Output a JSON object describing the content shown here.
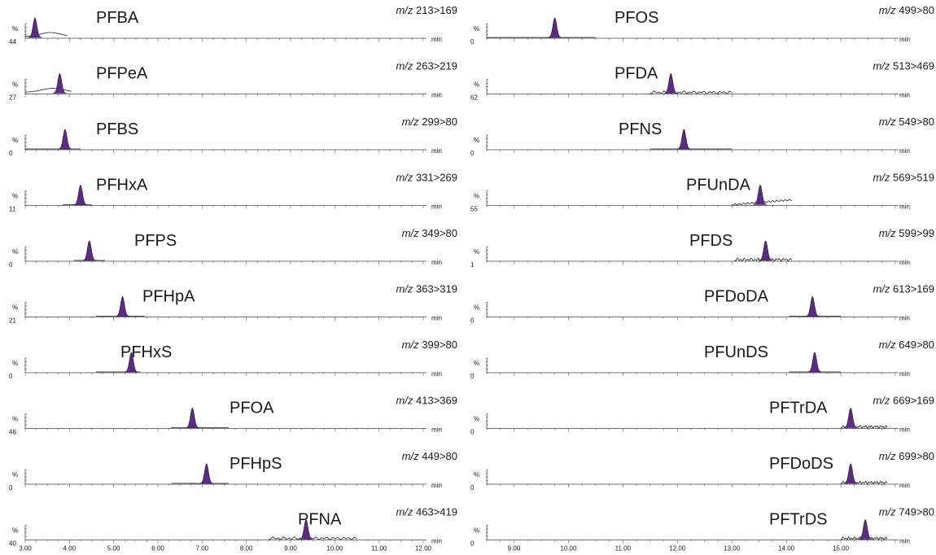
{
  "chart_data": {
    "type": "line",
    "x_unit": "min",
    "y_unit": "%",
    "mz_label": "m/z",
    "columns": [
      {
        "xlim": [
          3.0,
          12.0
        ],
        "xticks": [
          "3.00",
          "4.00",
          "5.00",
          "6.00",
          "7.00",
          "8.00",
          "9.00",
          "10.00",
          "11.00",
          "12.00"
        ],
        "panels": [
          {
            "compound": "PFBA",
            "transition": "213>169",
            "ymin": "44",
            "trace_start": 3.0,
            "trace_end": 3.95,
            "peak_rt": 3.22,
            "baseline": "hump"
          },
          {
            "compound": "PFPeA",
            "transition": "263>219",
            "ymin": "27",
            "trace_start": 3.0,
            "trace_end": 4.05,
            "peak_rt": 3.78,
            "baseline": "hump"
          },
          {
            "compound": "PFBS",
            "transition": "299>80",
            "ymin": "0",
            "trace_start": 3.0,
            "trace_end": 4.25,
            "peak_rt": 3.9,
            "baseline": "flat"
          },
          {
            "compound": "PFHxA",
            "transition": "331>269",
            "ymin": "11",
            "trace_start": 3.85,
            "trace_end": 4.5,
            "peak_rt": 4.25,
            "baseline": "flat"
          },
          {
            "compound": "PFPS",
            "transition": "349>80",
            "ymin": "0",
            "trace_start": 4.1,
            "trace_end": 4.8,
            "peak_rt": 4.45,
            "baseline": "flat"
          },
          {
            "compound": "PFHpA",
            "transition": "363>319",
            "ymin": "21",
            "trace_start": 4.6,
            "trace_end": 5.7,
            "peak_rt": 5.2,
            "baseline": "flat"
          },
          {
            "compound": "PFHxS",
            "transition": "399>80",
            "ymin": "0",
            "trace_start": 4.6,
            "trace_end": 5.6,
            "peak_rt": 5.4,
            "baseline": "flat"
          },
          {
            "compound": "PFOA",
            "transition": "413>369",
            "ymin": "46",
            "trace_start": 6.3,
            "trace_end": 7.6,
            "peak_rt": 6.78,
            "baseline": "flat"
          },
          {
            "compound": "PFHpS",
            "transition": "449>80",
            "ymin": "0",
            "trace_start": 6.3,
            "trace_end": 7.6,
            "peak_rt": 7.1,
            "baseline": "flat"
          },
          {
            "compound": "PFNA",
            "transition": "463>419",
            "ymin": "40",
            "trace_start": 8.5,
            "trace_end": 10.5,
            "peak_rt": 9.35,
            "baseline": "wavy"
          }
        ]
      },
      {
        "xlim": [
          8.5,
          16.0
        ],
        "xticks": [
          "9.00",
          "10.00",
          "11.00",
          "12.00",
          "13.00",
          "14.00",
          "15.00"
        ],
        "panels": [
          {
            "compound": "PFOS",
            "transition": "499>80",
            "ymin": "0",
            "trace_start": 8.5,
            "trace_end": 10.5,
            "peak_rt": 9.75,
            "baseline": "flat"
          },
          {
            "compound": "PFDA",
            "transition": "513>469",
            "ymin": "62",
            "trace_start": 11.5,
            "trace_end": 13.0,
            "peak_rt": 11.88,
            "baseline": "wavy"
          },
          {
            "compound": "PFNS",
            "transition": "549>80",
            "ymin": "0",
            "trace_start": 11.5,
            "trace_end": 13.0,
            "peak_rt": 12.12,
            "baseline": "flat"
          },
          {
            "compound": "PFUnDA",
            "transition": "569>519",
            "ymin": "55",
            "trace_start": 13.0,
            "trace_end": 14.1,
            "peak_rt": 13.52,
            "baseline": "rising"
          },
          {
            "compound": "PFDS",
            "transition": "599>99",
            "ymin": "1",
            "trace_start": 13.05,
            "trace_end": 14.1,
            "peak_rt": 13.62,
            "baseline": "wavy"
          },
          {
            "compound": "PFDoDA",
            "transition": "613>169",
            "ymin": "0",
            "trace_start": 14.05,
            "trace_end": 15.0,
            "peak_rt": 14.48,
            "baseline": "flat"
          },
          {
            "compound": "PFUnDS",
            "transition": "649>80",
            "ymin": "0",
            "trace_start": 14.05,
            "trace_end": 15.0,
            "peak_rt": 14.52,
            "baseline": "flat"
          },
          {
            "compound": "PFTrDA",
            "transition": "669>169",
            "ymin": "0",
            "trace_start": 15.0,
            "trace_end": 15.85,
            "peak_rt": 15.18,
            "baseline": "wavy"
          },
          {
            "compound": "PFDoDS",
            "transition": "699>80",
            "ymin": "0",
            "trace_start": 15.0,
            "trace_end": 15.85,
            "peak_rt": 15.18,
            "baseline": "wavy"
          },
          {
            "compound": "PFTrDS",
            "transition": "749>80",
            "ymin": "0",
            "trace_start": 15.0,
            "trace_end": 15.85,
            "peak_rt": 15.45,
            "baseline": "wavy"
          }
        ]
      }
    ]
  },
  "colors": {
    "peak_fill": "#5b2d82",
    "trace": "#222222",
    "axis": "#444444"
  }
}
